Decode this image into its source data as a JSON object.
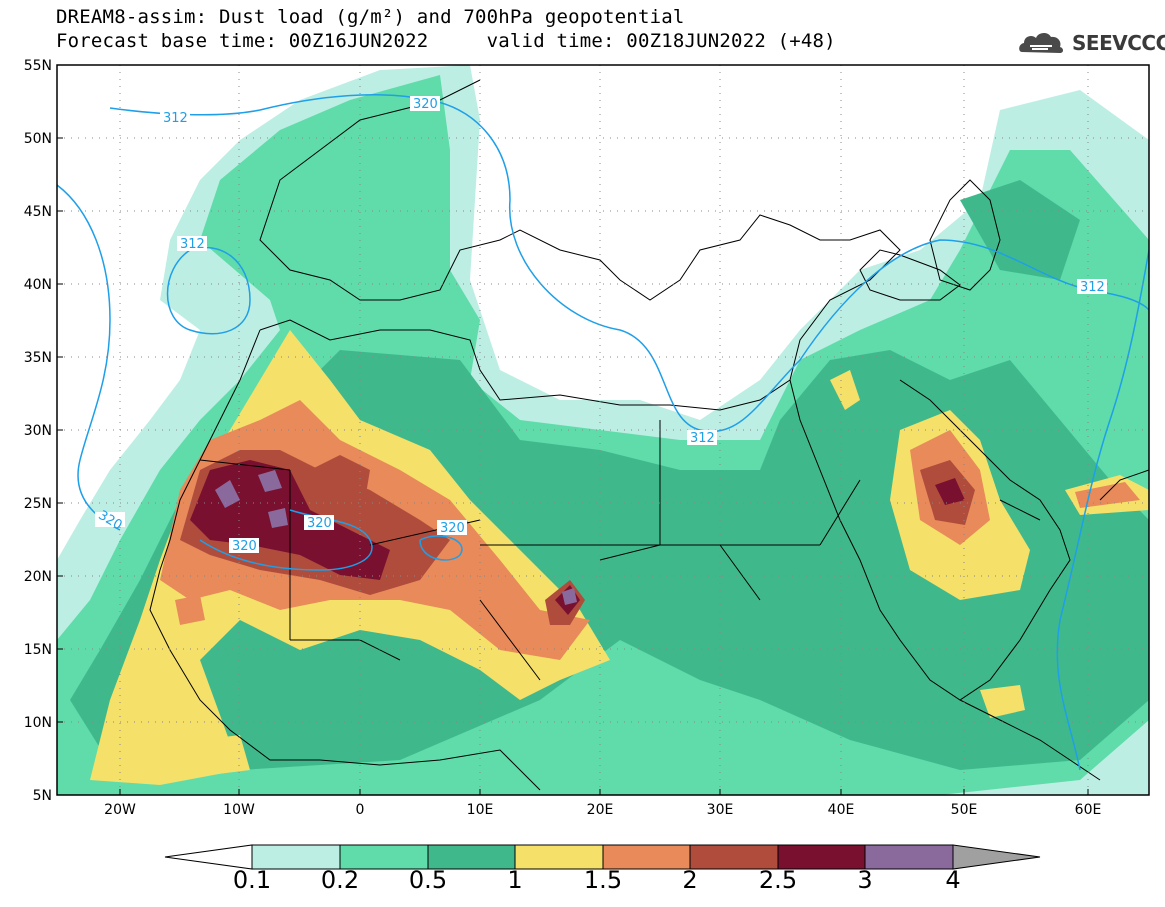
{
  "title": {
    "line1": "DREAM8-assim: Dust load (g/m²) and 700hPa geopotential",
    "line2": "Forecast base time: 00Z16JUN2022     valid time: 00Z18JUN2022 (+48)"
  },
  "logo": {
    "text": "SEEVCCC",
    "icon": "cloud-icon"
  },
  "map": {
    "lon_range": [
      -25,
      65
    ],
    "lat_range": [
      5,
      55
    ],
    "lat_labels": [
      "55N",
      "50N",
      "45N",
      "40N",
      "35N",
      "30N",
      "25N",
      "20N",
      "15N",
      "10N",
      "5N"
    ],
    "lon_labels": [
      "20W",
      "10W",
      "0",
      "10E",
      "20E",
      "30E",
      "40E",
      "50E",
      "60E"
    ],
    "contour_labels": [
      "312",
      "312",
      "320",
      "312",
      "312",
      "320",
      "320",
      "320",
      "320"
    ],
    "grid": true
  },
  "colorbar": {
    "labels": [
      "0.1",
      "0.2",
      "0.5",
      "1",
      "1.5",
      "2",
      "2.5",
      "3",
      "4"
    ],
    "colors": [
      "#bdeee3",
      "#5fdcaa",
      "#3fb98c",
      "#f5e06a",
      "#e88a5a",
      "#b04c3c",
      "#7a1030",
      "#8a6a9c",
      "#a0a0a0"
    ]
  }
}
